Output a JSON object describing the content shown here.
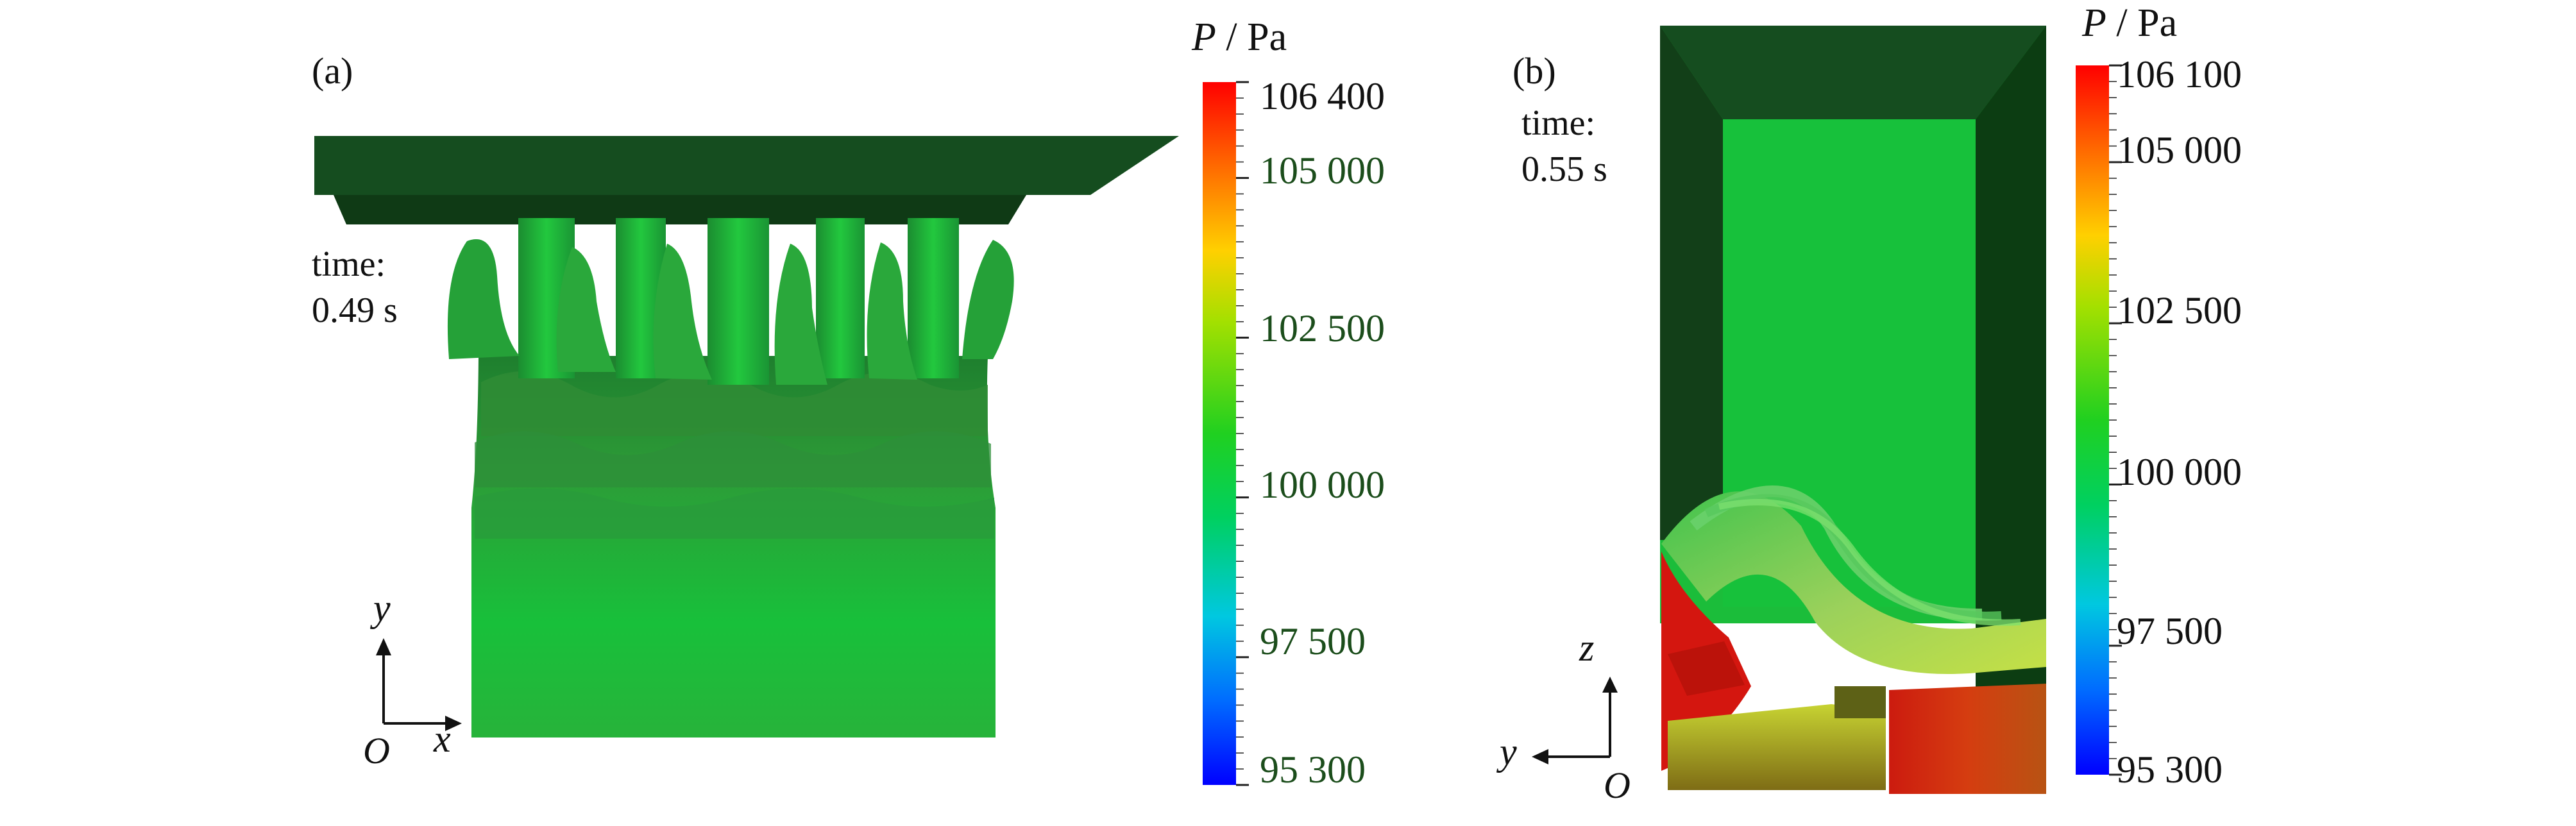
{
  "panels": [
    {
      "label": "(a)",
      "time_title": "time:",
      "time_value": "0.49 s",
      "colorbar": {
        "title_var": "P",
        "title_unit": " / Pa",
        "ticks": [
          "106 400",
          "105 000",
          "102 500",
          "100 000",
          "97 500",
          "95 300"
        ],
        "tick_color": "#1b4d1b"
      },
      "axes": {
        "vertical": "y",
        "horizontal": "x",
        "origin": "O"
      }
    },
    {
      "label": "(b)",
      "time_title": "time:",
      "time_value": "0.55 s",
      "colorbar": {
        "title_var": "P",
        "title_unit": " / Pa",
        "ticks": [
          "106 100",
          "105 000",
          "102 500",
          "100 000",
          "97 500",
          "95 300"
        ],
        "tick_color": "#111111"
      },
      "axes": {
        "vertical": "z",
        "horizontal": "y",
        "origin": "O"
      }
    }
  ],
  "colors": {
    "dark_green": "#154d1f",
    "mid_green": "#22a33a",
    "bright_green": "#16c43a",
    "red": "#d61a10",
    "orange": "#e36b0f",
    "yellow": "#d7d218",
    "brown": "#8a4a12"
  }
}
